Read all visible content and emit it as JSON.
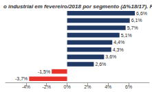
{
  "chart_data": {
    "type": "bar",
    "title": "o industrial em fevereiro/2018 por segmento (Δ%18/17). F",
    "orientation": "horizontal",
    "categories": [
      null,
      null,
      null,
      null,
      null,
      null,
      null,
      null,
      null,
      null
    ],
    "values": [
      6.6,
      6.1,
      5.7,
      5.1,
      4.4,
      4.3,
      3.6,
      2.6,
      -1.5,
      -3.7
    ],
    "value_labels": [
      "6,6%",
      "6,1%",
      "5,7%",
      "5,1%",
      "4,4%",
      "4,3%",
      "3,6%",
      "2,6%",
      "-1,5%",
      "-3,7%"
    ],
    "colors": [
      "#1f3864",
      "#1f3864",
      "#1f3864",
      "#1f3864",
      "#1f3864",
      "#1f3864",
      "#1f3864",
      "#1f3864",
      "#e8332a",
      "#e8332a"
    ],
    "xlim": [
      -6,
      8
    ],
    "xticks": [
      {
        "value": -4,
        "label": "-4%"
      },
      {
        "value": -2,
        "label": "-2%"
      },
      {
        "value": 0,
        "label": "0%"
      },
      {
        "value": 2,
        "label": "2%"
      },
      {
        "value": 4,
        "label": "4%"
      },
      {
        "value": 6,
        "label": "6%"
      }
    ],
    "grid": false,
    "data_labels": true,
    "tick_labels": "x"
  }
}
